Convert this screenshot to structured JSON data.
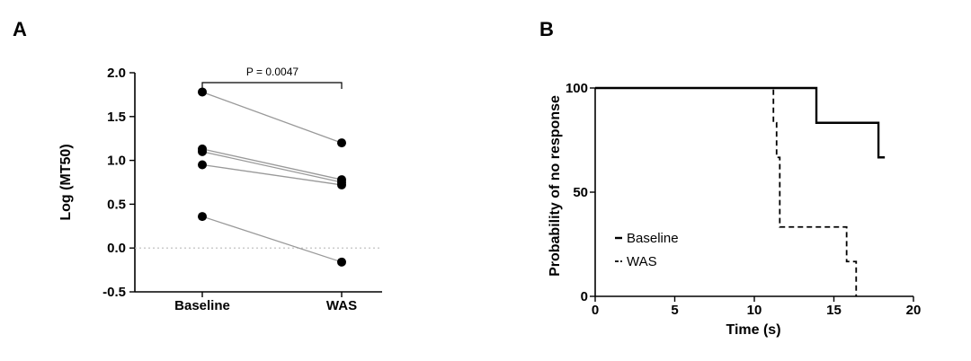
{
  "panels": {
    "a": {
      "label": "A"
    },
    "b": {
      "label": "B"
    }
  },
  "chart_data": [
    {
      "type": "scatter",
      "title": "",
      "xlabel": "",
      "ylabel": "Log (MT50)",
      "categories": [
        "Baseline",
        "WAS"
      ],
      "ylim": [
        -0.5,
        2.0
      ],
      "yticks": [
        "2.0",
        "1.5",
        "1.0",
        "0.5",
        "0.0",
        "-0.5"
      ],
      "reference_line": 0.0,
      "annotation": "P = 0.0047",
      "paired_points": [
        {
          "baseline": 1.78,
          "was": 1.2
        },
        {
          "baseline": 1.13,
          "was": 0.78
        },
        {
          "baseline": 1.1,
          "was": 0.75
        },
        {
          "baseline": 0.95,
          "was": 0.72
        },
        {
          "baseline": 0.36,
          "was": -0.16
        }
      ],
      "grid": false,
      "colors": {
        "points": "#000000",
        "lines": "#999999",
        "refline": "#bbbbbb"
      }
    },
    {
      "type": "line",
      "title": "",
      "xlabel": "Time (s)",
      "ylabel": "Probability of no response",
      "xlim": [
        0,
        20
      ],
      "ylim": [
        0,
        100
      ],
      "xticks": [
        "0",
        "5",
        "10",
        "15",
        "20"
      ],
      "yticks": [
        "100",
        "50",
        "0"
      ],
      "legend_position": "bottom-left",
      "series": [
        {
          "name": "Baseline",
          "style": "solid",
          "x": [
            0,
            13.9,
            13.9,
            17.8,
            17.8,
            18.2
          ],
          "y": [
            100,
            100,
            83.3,
            83.3,
            66.7,
            66.7
          ]
        },
        {
          "name": "WAS",
          "style": "dashed",
          "x": [
            0,
            11.2,
            11.2,
            11.4,
            11.4,
            11.6,
            11.6,
            15.8,
            15.8,
            16.4,
            16.4
          ],
          "y": [
            100,
            100,
            83.3,
            83.3,
            66.7,
            66.7,
            33.3,
            33.3,
            16.7,
            16.7,
            0
          ]
        }
      ],
      "grid": false
    }
  ]
}
